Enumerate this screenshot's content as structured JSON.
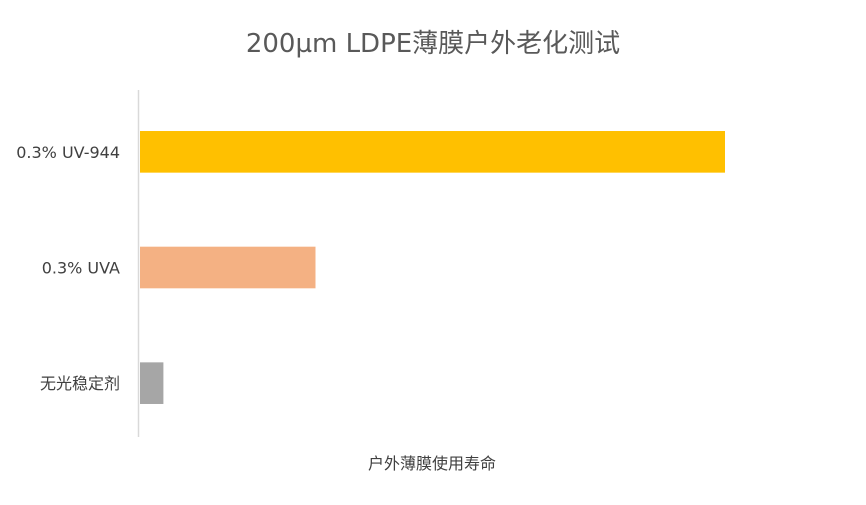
{
  "chart_data": {
    "type": "bar",
    "orientation": "horizontal",
    "title": "200µm LDPE薄膜户外老化测试",
    "xlabel": "户外薄膜使用寿命",
    "ylabel": "",
    "categories": [
      "0.3% UV-944",
      "0.3% UVA",
      "无光稳定剂"
    ],
    "values": [
      100,
      30,
      4
    ],
    "colors": [
      "#FFC000",
      "#F4B183",
      "#A6A6A6"
    ],
    "xlim": [
      0,
      100
    ],
    "grid": false,
    "legend": "none"
  }
}
